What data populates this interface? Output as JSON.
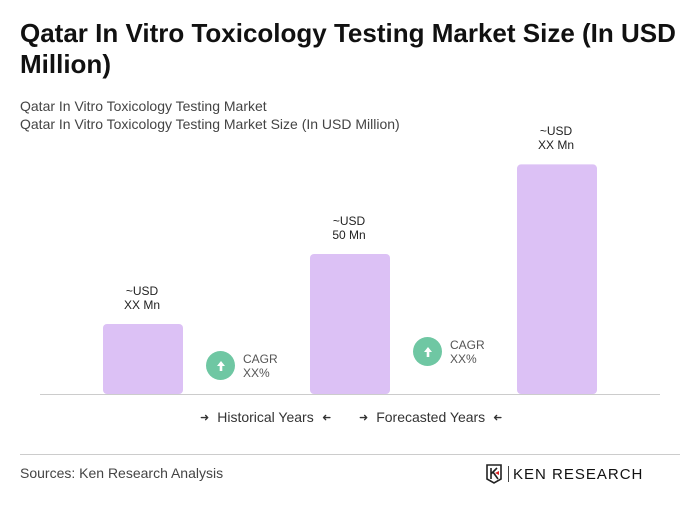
{
  "title": "Qatar In Vitro Toxicology Testing Market Size (In USD Million)",
  "subtitle1": "Qatar In Vitro Toxicology Testing Market",
  "subtitle2": "Qatar In Vitro Toxicology Testing Market Size (In USD Million)",
  "chart_data": {
    "type": "bar",
    "values": [
      25,
      50,
      82
    ],
    "data_labels": [
      [
        "~USD",
        "XX Mn"
      ],
      [
        "~USD",
        "50 Mn"
      ],
      [
        "~USD",
        "XX Mn"
      ]
    ],
    "bar_color": "#dcc1f5",
    "grid": false
  },
  "cagr": [
    {
      "label": "CAGR",
      "value": "XX%"
    },
    {
      "label": "CAGR",
      "value": "XX%"
    }
  ],
  "cagr_color": "#6fc7a3",
  "legend": {
    "historical": "Historical Years",
    "forecasted": "Forecasted Years"
  },
  "sources": "Sources: Ken Research Analysis",
  "logo_text": "KEN RESEARCH"
}
